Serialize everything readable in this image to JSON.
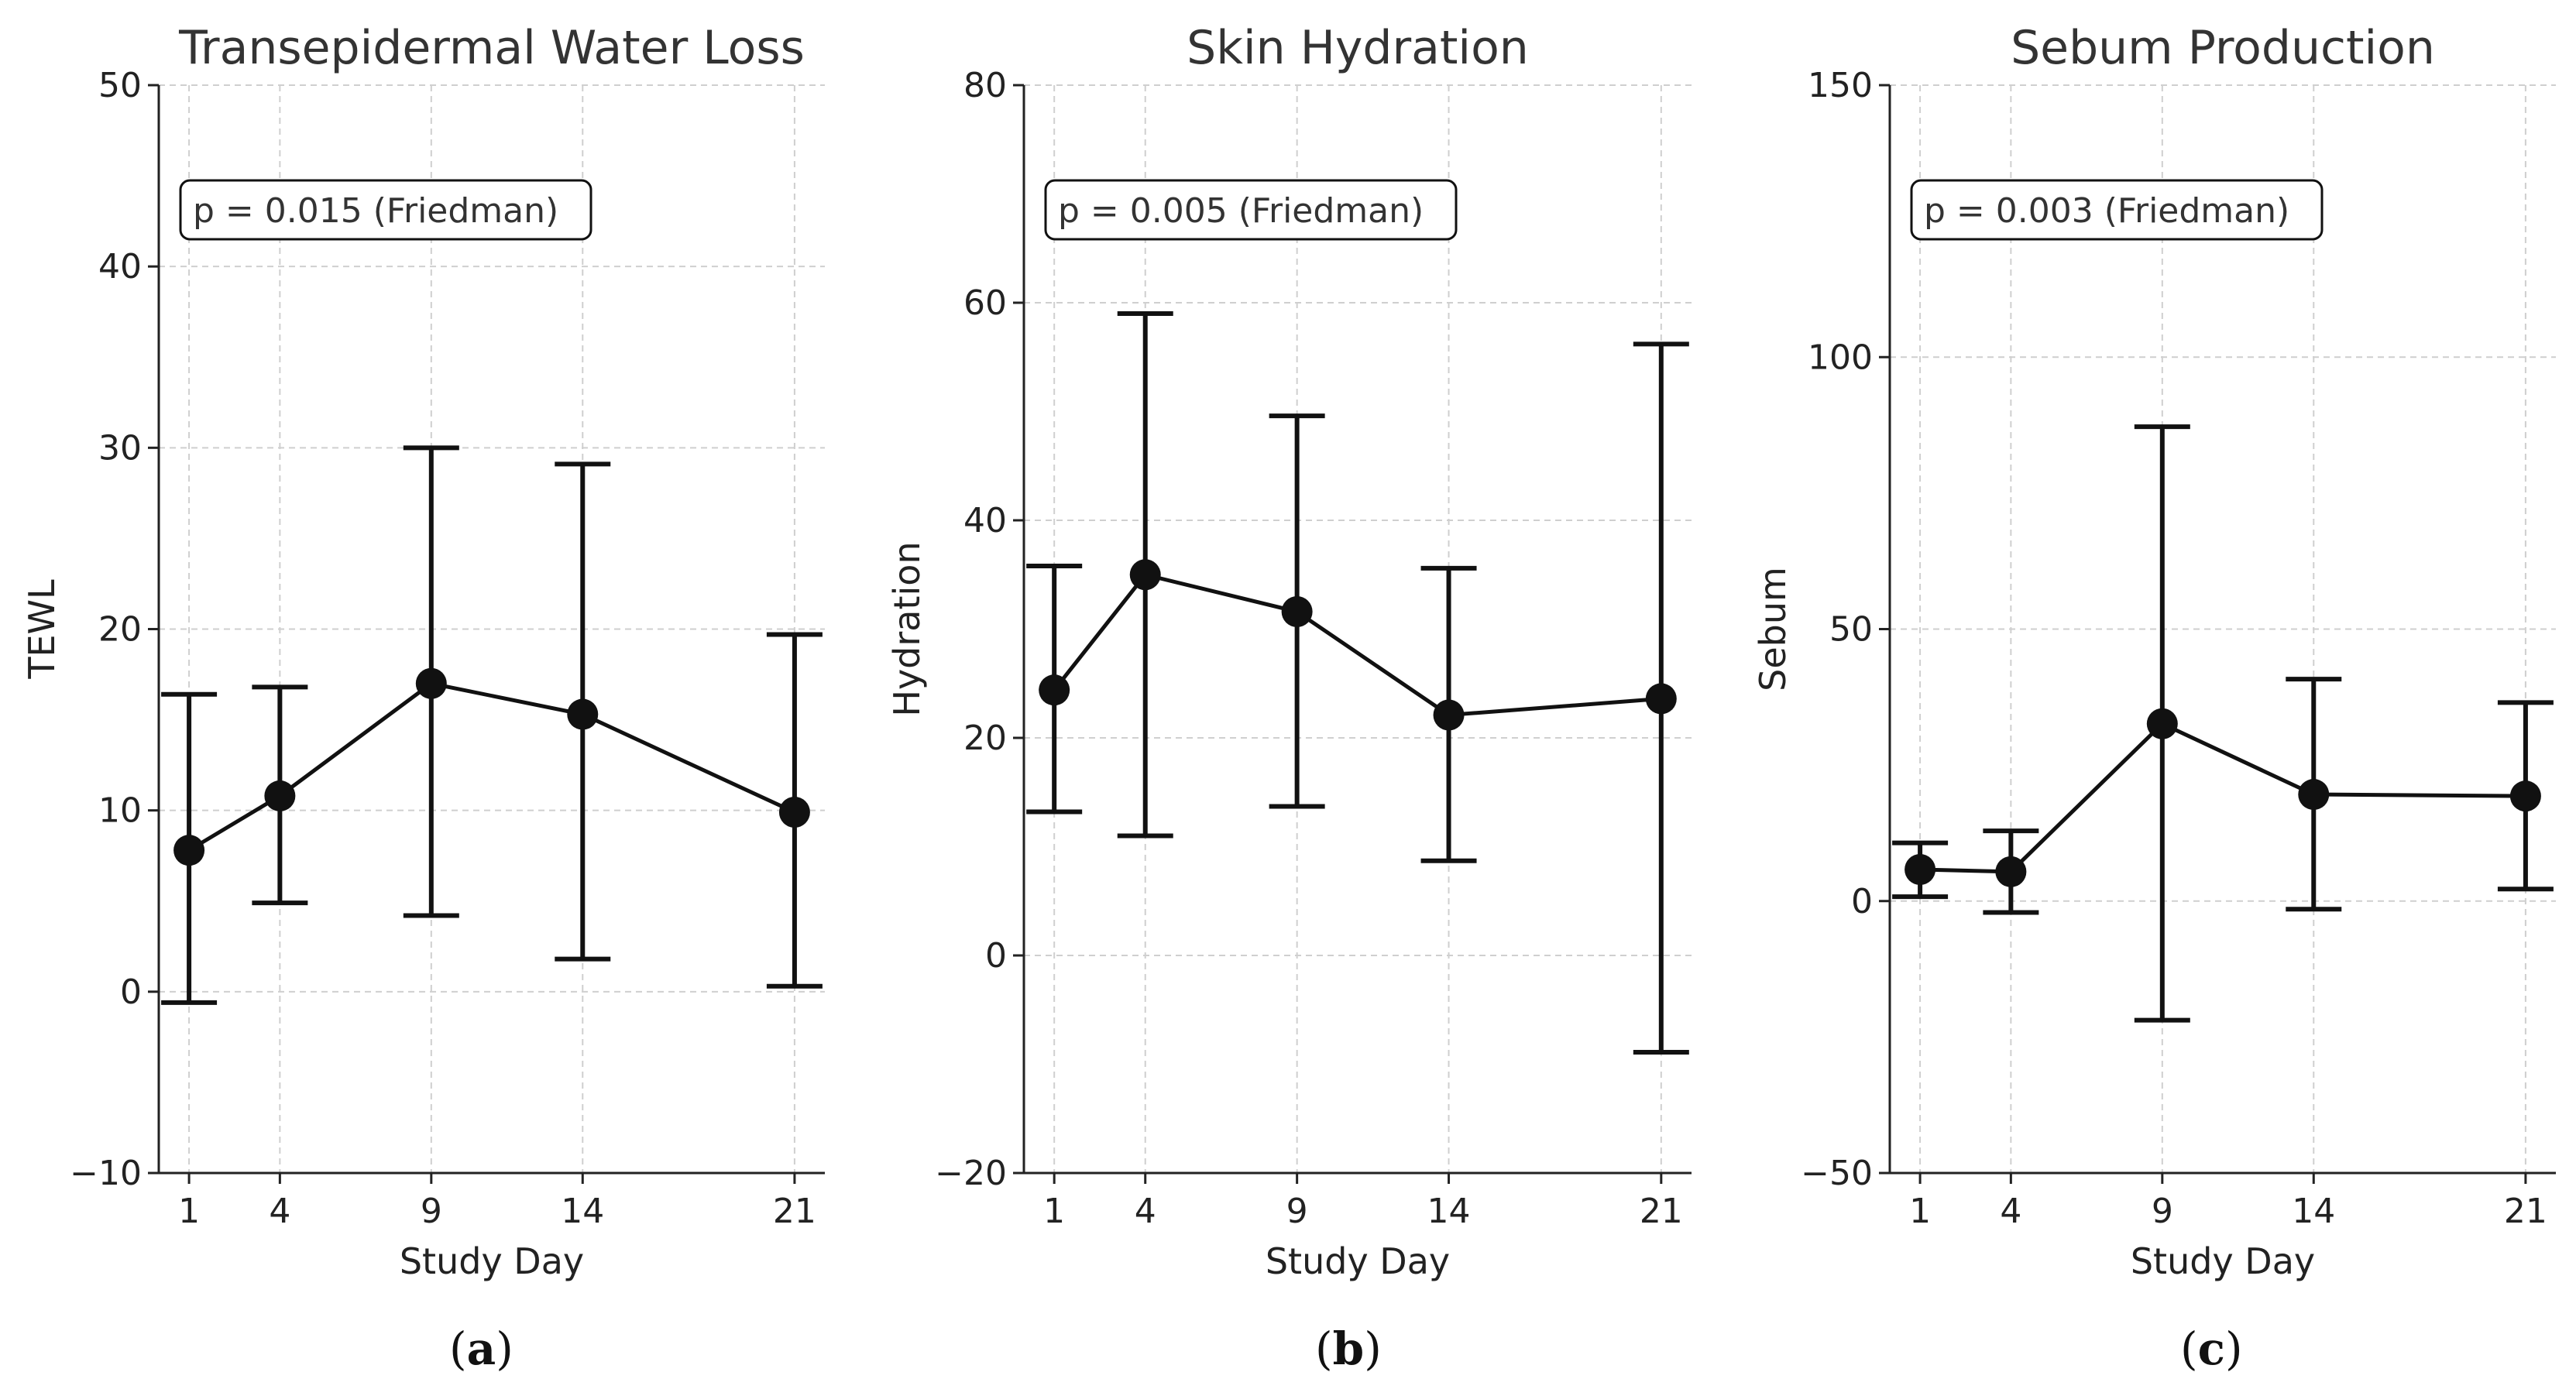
{
  "chart_data": [
    {
      "type": "errorbar-line",
      "panel_label": "a",
      "title": "Transepidermal Water Loss",
      "xlabel": "Study Day",
      "ylabel": "TEWL",
      "x": [
        1,
        4,
        9,
        14,
        21
      ],
      "xticks": [
        1,
        4,
        9,
        14,
        21
      ],
      "xlim": [
        0,
        22
      ],
      "ylim": [
        -10,
        50
      ],
      "yticks": [
        -10,
        0,
        10,
        20,
        30,
        40,
        50
      ],
      "ytick_labels": [
        "−10",
        "0",
        "10",
        "20",
        "30",
        "40",
        "50"
      ],
      "grid": true,
      "series": [
        {
          "name": "TEWL",
          "values": [
            7.8,
            10.8,
            17.0,
            15.3,
            9.9
          ],
          "error_low": [
            -0.6,
            4.9,
            4.2,
            1.8,
            0.3
          ],
          "error_high": [
            16.4,
            16.8,
            30.0,
            29.1,
            19.7
          ]
        }
      ],
      "annotation": "p = 0.015 (Friedman)"
    },
    {
      "type": "errorbar-line",
      "panel_label": "b",
      "title": "Skin Hydration",
      "xlabel": "Study Day",
      "ylabel": "Hydration",
      "x": [
        1,
        4,
        9,
        14,
        21
      ],
      "xticks": [
        1,
        4,
        9,
        14,
        21
      ],
      "xlim": [
        0,
        22
      ],
      "ylim": [
        -20,
        80
      ],
      "yticks": [
        -20,
        0,
        20,
        40,
        60,
        80
      ],
      "ytick_labels": [
        "−20",
        "0",
        "20",
        "40",
        "60",
        "80"
      ],
      "grid": true,
      "series": [
        {
          "name": "Hydration",
          "values": [
            24.4,
            35.0,
            31.6,
            22.1,
            23.6
          ],
          "error_low": [
            13.2,
            11.0,
            13.7,
            8.7,
            -8.9
          ],
          "error_high": [
            35.8,
            59.0,
            49.6,
            35.6,
            56.2
          ]
        }
      ],
      "annotation": "p = 0.005 (Friedman)"
    },
    {
      "type": "errorbar-line",
      "panel_label": "c",
      "title": "Sebum Production",
      "xlabel": "Study Day",
      "ylabel": "Sebum",
      "x": [
        1,
        4,
        9,
        14,
        21
      ],
      "xticks": [
        1,
        4,
        9,
        14,
        21
      ],
      "xlim": [
        0,
        22
      ],
      "ylim": [
        -50,
        150
      ],
      "yticks": [
        -50,
        0,
        50,
        100,
        150
      ],
      "ytick_labels": [
        "−50",
        "0",
        "50",
        "100",
        "150"
      ],
      "grid": true,
      "series": [
        {
          "name": "Sebum",
          "values": [
            5.8,
            5.4,
            32.6,
            19.6,
            19.3
          ],
          "error_low": [
            0.8,
            -2.1,
            -21.9,
            -1.5,
            2.2
          ],
          "error_high": [
            10.7,
            12.9,
            87.2,
            40.8,
            36.5
          ]
        }
      ],
      "annotation": "p = 0.003 (Friedman)"
    }
  ],
  "colors": {
    "line": "#111111",
    "grid": "#cfcfcf",
    "axis": "#222222",
    "annotation_border": "#111111",
    "background": "#ffffff"
  }
}
